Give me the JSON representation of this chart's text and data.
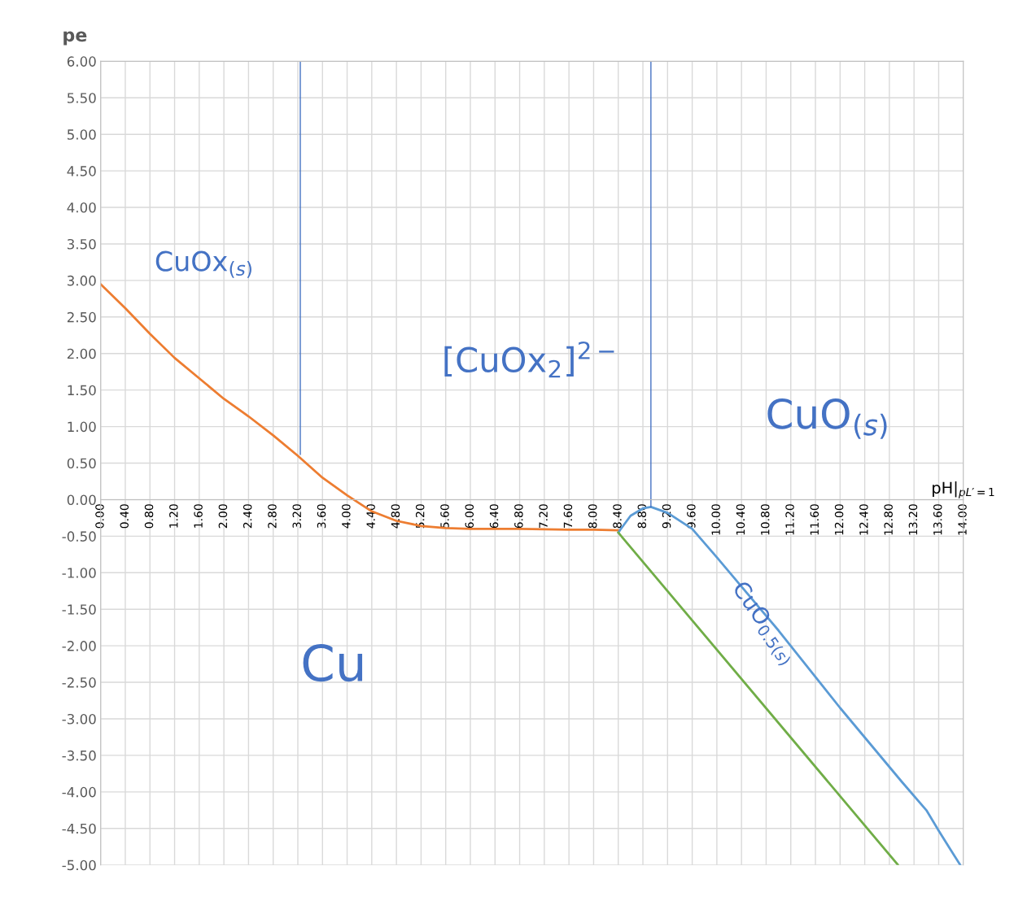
{
  "chart_data": {
    "type": "line",
    "ylabel": "pe",
    "xlabel": "pH|$_{pL′=1}$",
    "series": [
      {
        "color": "#ed7d31",
        "x": [
          0,
          0.4,
          0.8,
          1.2,
          1.6,
          2.0,
          2.4,
          2.8,
          3.2,
          3.6,
          4.0,
          4.4,
          4.8,
          5.2,
          5.6,
          6.0,
          6.8,
          7.6,
          8.0,
          8.4
        ],
        "values": [
          2.95,
          2.62,
          2.27,
          1.94,
          1.66,
          1.38,
          1.14,
          0.88,
          0.6,
          0.3,
          0.06,
          -0.16,
          -0.29,
          -0.36,
          -0.39,
          -0.4,
          -0.4,
          -0.41,
          -0.41,
          -0.42
        ]
      },
      {
        "color": "#5b9bd5",
        "x": [
          8.4,
          8.6,
          8.8,
          8.93,
          9.2,
          9.6,
          10.0,
          11.0,
          12.0,
          13.0,
          13.4,
          13.6,
          13.8,
          13.95
        ],
        "values": [
          -0.45,
          -0.22,
          -0.12,
          -0.1,
          -0.18,
          -0.4,
          -0.79,
          -1.79,
          -2.85,
          -3.86,
          -4.25,
          -4.53,
          -4.8,
          -5.0
        ]
      },
      {
        "color": "#70ad47",
        "x": [
          8.4,
          12.94
        ],
        "values": [
          -0.45,
          -5.0
        ]
      },
      {
        "color": "#4472c4",
        "x": [
          3.24,
          3.24
        ],
        "values": [
          0.62,
          6.0
        ]
      },
      {
        "color": "#4472c4",
        "x": [
          8.93,
          8.93
        ],
        "values": [
          -0.1,
          6.0
        ]
      }
    ],
    "annotations": [
      "CuOx$_{(s)}$",
      "[CuOx$_{2}$]$^{2−}$",
      "CuO$_{(s)}$",
      "Cu",
      "CuO$_{0.5(s)}$"
    ],
    "xlim": [
      0,
      14
    ],
    "ylim": [
      -5,
      6
    ],
    "xticks": [
      {
        "value": 0,
        "label": "0.00"
      },
      {
        "value": 0.4,
        "label": "0.40"
      },
      {
        "value": 0.8,
        "label": "0.80"
      },
      {
        "value": 1.2,
        "label": "1.20"
      },
      {
        "value": 1.6,
        "label": "1.60"
      },
      {
        "value": 2.0,
        "label": "2.00"
      },
      {
        "value": 2.4,
        "label": "2.40"
      },
      {
        "value": 2.8,
        "label": "2.80"
      },
      {
        "value": 3.2,
        "label": "3.20"
      },
      {
        "value": 3.6,
        "label": "3.60"
      },
      {
        "value": 4.0,
        "label": "4.00"
      },
      {
        "value": 4.4,
        "label": "4.40"
      },
      {
        "value": 4.8,
        "label": "4.80"
      },
      {
        "value": 5.2,
        "label": "5.20"
      },
      {
        "value": 5.6,
        "label": "5.60"
      },
      {
        "value": 6.0,
        "label": "6.00"
      },
      {
        "value": 6.4,
        "label": "6.40"
      },
      {
        "value": 6.8,
        "label": "6.80"
      },
      {
        "value": 7.2,
        "label": "7.20"
      },
      {
        "value": 7.6,
        "label": "7.60"
      },
      {
        "value": 8.0,
        "label": "8.00"
      },
      {
        "value": 8.4,
        "label": "8.40"
      },
      {
        "value": 8.8,
        "label": "8.80"
      },
      {
        "value": 9.2,
        "label": "9.20"
      },
      {
        "value": 9.6,
        "label": "9.60"
      },
      {
        "value": 10.0,
        "label": "10.00"
      },
      {
        "value": 10.4,
        "label": "10.40"
      },
      {
        "value": 10.8,
        "label": "10.80"
      },
      {
        "value": 11.2,
        "label": "11.20"
      },
      {
        "value": 11.6,
        "label": "11.60"
      },
      {
        "value": 12.0,
        "label": "12.00"
      },
      {
        "value": 12.4,
        "label": "12.40"
      },
      {
        "value": 12.8,
        "label": "12.80"
      },
      {
        "value": 13.2,
        "label": "13.20"
      },
      {
        "value": 13.6,
        "label": "13.60"
      },
      {
        "value": 14.0,
        "label": "14.00"
      }
    ],
    "yticks": [
      {
        "value": 6,
        "label": "6.00"
      },
      {
        "value": 5.5,
        "label": "5.50"
      },
      {
        "value": 5,
        "label": "5.00"
      },
      {
        "value": 4.5,
        "label": "4.50"
      },
      {
        "value": 4,
        "label": "4.00"
      },
      {
        "value": 3.5,
        "label": "3.50"
      },
      {
        "value": 3,
        "label": "3.00"
      },
      {
        "value": 2.5,
        "label": "2.50"
      },
      {
        "value": 2,
        "label": "2.00"
      },
      {
        "value": 1.5,
        "label": "1.50"
      },
      {
        "value": 1,
        "label": "1.00"
      },
      {
        "value": 0.5,
        "label": "0.50"
      },
      {
        "value": 0,
        "label": "0.00"
      },
      {
        "value": -0.5,
        "label": "-0.50"
      },
      {
        "value": -1,
        "label": "-1.00"
      },
      {
        "value": -1.5,
        "label": "-1.50"
      },
      {
        "value": -2,
        "label": "-2.00"
      },
      {
        "value": -2.5,
        "label": "-2.50"
      },
      {
        "value": -3,
        "label": "-3.00"
      },
      {
        "value": -3.5,
        "label": "-3.50"
      },
      {
        "value": -4,
        "label": "-4.00"
      },
      {
        "value": -4.5,
        "label": "-4.50"
      },
      {
        "value": -5,
        "label": "-5.00"
      }
    ],
    "grid": true
  }
}
